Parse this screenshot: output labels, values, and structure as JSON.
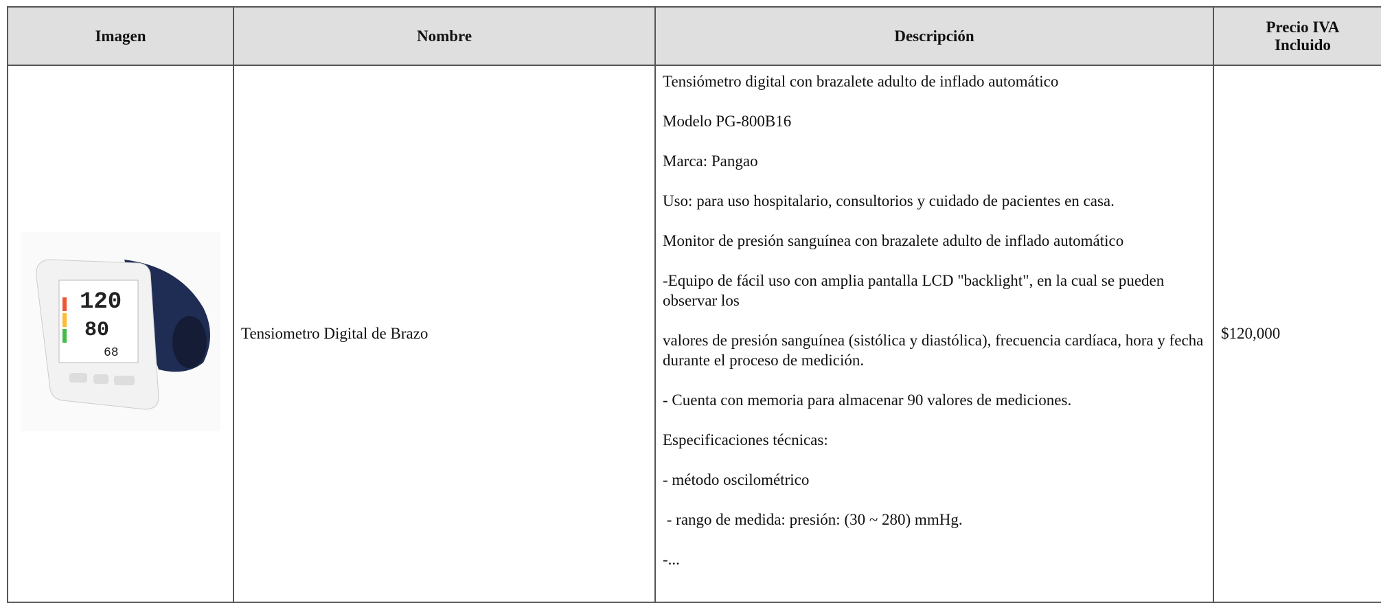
{
  "table": {
    "headers": [
      "Imagen",
      "Nombre",
      "Descripción",
      "Precio IVA Incluido"
    ],
    "rows": [
      {
        "name": "Tensiometro Digital de Brazo",
        "description": [
          "Tensiómetro digital con brazalete adulto de inflado automático",
          "Modelo PG-800B16",
          "Marca: Pangao",
          "Uso: para uso hospitalario, consultorios y cuidado de pacientes en casa.",
          "Monitor de presión sanguínea con brazalete adulto de inflado automático",
          "-Equipo de fácil uso con amplia pantalla LCD \"backlight\", en la cual se pueden observar los",
          "valores de presión sanguínea (sistólica y diastólica), frecuencia cardíaca, hora y fecha durante el proceso de medición.",
          "- Cuenta con memoria para almacenar 90 valores de mediciones.",
          "Especificaciones técnicas:",
          "- método oscilométrico",
          " - rango de medida: presión: (30 ~ 280) mmHg.",
          "-..."
        ],
        "price": "$120,000"
      }
    ]
  }
}
